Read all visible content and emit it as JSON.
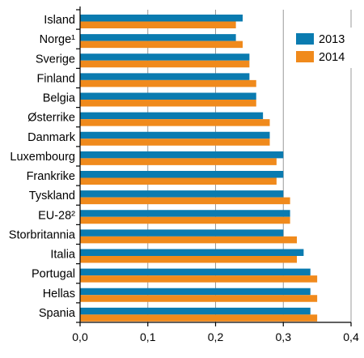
{
  "chart_data": {
    "type": "bar",
    "orientation": "horizontal",
    "title": "",
    "xlabel": "",
    "ylabel": "",
    "categories": [
      "Island",
      "Norge¹",
      "Sverige",
      "Finland",
      "Belgia",
      "Østerrike",
      "Danmark",
      "Luxembourg",
      "Frankrike",
      "Tyskland",
      "EU-28²",
      "Storbritannia",
      "Italia",
      "Portugal",
      "Hellas",
      "Spania"
    ],
    "series": [
      {
        "name": "2013",
        "color": "#0a7bb0",
        "values": [
          0.24,
          0.23,
          0.25,
          0.25,
          0.26,
          0.27,
          0.28,
          0.3,
          0.3,
          0.3,
          0.31,
          0.3,
          0.33,
          0.34,
          0.34,
          0.34
        ]
      },
      {
        "name": "2014",
        "color": "#f08a1c",
        "values": [
          0.23,
          0.24,
          0.25,
          0.26,
          0.26,
          0.28,
          0.28,
          0.29,
          0.29,
          0.31,
          0.31,
          0.32,
          0.32,
          0.35,
          0.35,
          0.35
        ]
      }
    ],
    "xlim": [
      0,
      0.4
    ],
    "xticks": [
      0,
      0.1,
      0.2,
      0.3,
      0.4
    ],
    "xtick_labels": [
      "0,0",
      "0,1",
      "0,2",
      "0,3",
      "0,4"
    ],
    "grid": {
      "vertical": true,
      "color": "#999999"
    },
    "legend": {
      "position": "top-right",
      "entries": [
        "2013",
        "2014"
      ]
    }
  }
}
